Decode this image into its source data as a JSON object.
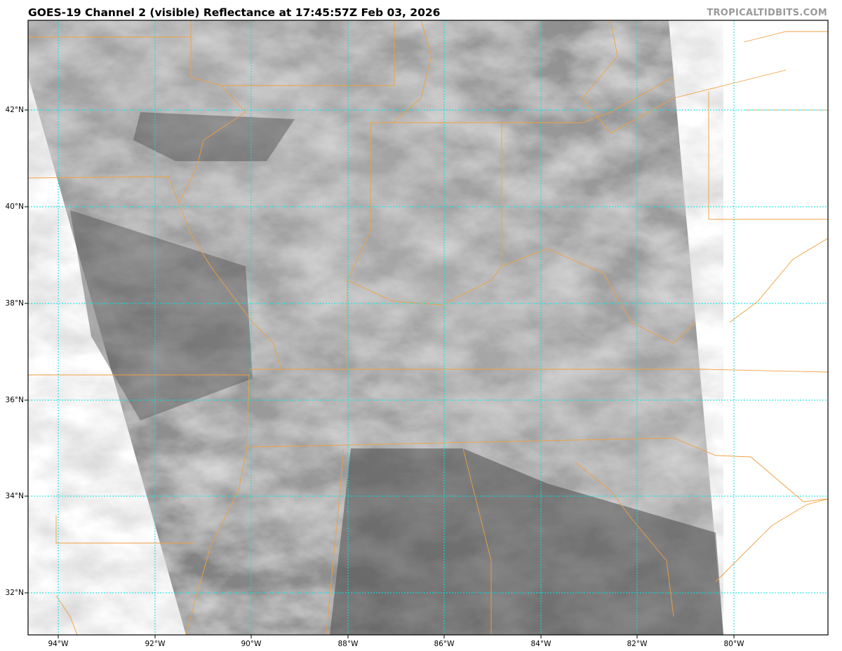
{
  "title": "GOES-19 Channel 2 (visible) Reflectance at 17:45:57Z Feb 03, 2026",
  "credit": "TROPICALTIDBITS.COM",
  "map": {
    "extent": {
      "lon_min": -94.6,
      "lon_max": -78.3,
      "lat_min": 31.1,
      "lat_max": 43.8
    },
    "lat_labels": [
      "42°N",
      "40°N",
      "38°N",
      "36°N",
      "34°N",
      "32°N"
    ],
    "lon_labels": [
      "94°W",
      "92°W",
      "90°W",
      "88°W",
      "86°W",
      "84°W",
      "82°W",
      "80°W"
    ],
    "gridline_color": "#00e5e5",
    "border_color": "#f0a040",
    "imagery": "visible reflectance, grayscale"
  }
}
